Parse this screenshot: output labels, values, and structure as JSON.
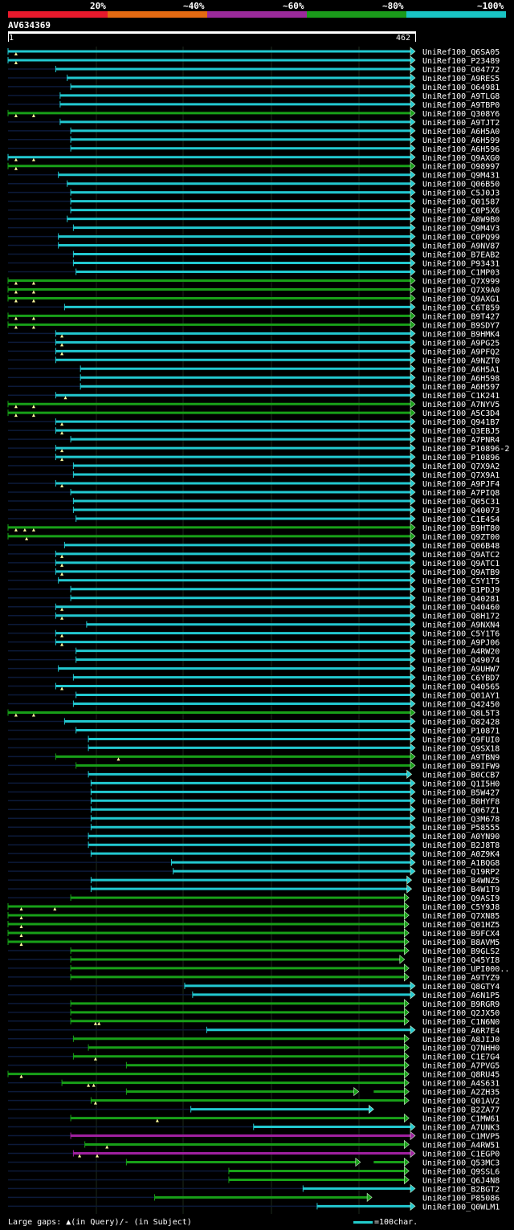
{
  "legend": {
    "labels": [
      "20%",
      "~40%",
      "~60%",
      "~80%",
      "~100%"
    ],
    "colors": [
      "#e8192c",
      "#e46a12",
      "#9b2a9b",
      "#1a9a1a",
      "#19c3c3"
    ]
  },
  "query": {
    "name": "AV634369",
    "start": "1",
    "end": "462"
  },
  "footer": {
    "gaps": "Large gaps: ▲(in Query)/- (in Subject)",
    "scale": "=100char."
  },
  "chart_data": {
    "type": "alignment-overview",
    "query_length": 462,
    "identity_bins": [
      "20%",
      "~40%",
      "~60%",
      "~80%",
      "~100%"
    ],
    "hits": [
      {
        "name": "UniRef100_Q6SA05",
        "start": 1,
        "end": 462,
        "c": "cyan",
        "m": [
          10
        ]
      },
      {
        "name": "UniRef100_P23489",
        "start": 1,
        "end": 462,
        "c": "cyan",
        "m": [
          10
        ]
      },
      {
        "name": "UniRef100_O04772",
        "start": 55,
        "end": 462,
        "c": "cyan"
      },
      {
        "name": "UniRef100_A9RES5",
        "start": 68,
        "end": 462,
        "c": "cyan"
      },
      {
        "name": "UniRef100_O64981",
        "start": 72,
        "end": 462,
        "c": "cyan"
      },
      {
        "name": "UniRef100_A9TLG8",
        "start": 60,
        "end": 462,
        "c": "cyan"
      },
      {
        "name": "UniRef100_A9TBP0",
        "start": 60,
        "end": 462,
        "c": "cyan"
      },
      {
        "name": "UniRef100_Q308Y6",
        "start": 1,
        "end": 462,
        "c": "green",
        "m": [
          10,
          30
        ]
      },
      {
        "name": "UniRef100_A9TJT2",
        "start": 60,
        "end": 462,
        "c": "cyan"
      },
      {
        "name": "UniRef100_A6H5A0",
        "start": 72,
        "end": 462,
        "c": "cyan"
      },
      {
        "name": "UniRef100_A6H599",
        "start": 72,
        "end": 462,
        "c": "cyan"
      },
      {
        "name": "UniRef100_A6H596",
        "start": 72,
        "end": 462,
        "c": "cyan"
      },
      {
        "name": "UniRef100_Q9AXG0",
        "start": 1,
        "end": 462,
        "c": "cyan",
        "m": [
          10,
          30
        ]
      },
      {
        "name": "UniRef100_O98997",
        "start": 1,
        "end": 462,
        "c": "green",
        "m": [
          10
        ]
      },
      {
        "name": "UniRef100_Q9M431",
        "start": 58,
        "end": 462,
        "c": "cyan"
      },
      {
        "name": "UniRef100_Q06B50",
        "start": 68,
        "end": 462,
        "c": "cyan"
      },
      {
        "name": "UniRef100_C5J0J3",
        "start": 72,
        "end": 462,
        "c": "cyan"
      },
      {
        "name": "UniRef100_Q01587",
        "start": 72,
        "end": 462,
        "c": "cyan"
      },
      {
        "name": "UniRef100_C0P5X6",
        "start": 72,
        "end": 462,
        "c": "cyan"
      },
      {
        "name": "UniRef100_A8W9B0",
        "start": 68,
        "end": 462,
        "c": "cyan"
      },
      {
        "name": "UniRef100_Q9M4V3",
        "start": 75,
        "end": 462,
        "c": "cyan"
      },
      {
        "name": "UniRef100_C0PQ99",
        "start": 58,
        "end": 462,
        "c": "cyan"
      },
      {
        "name": "UniRef100_A9NV87",
        "start": 58,
        "end": 462,
        "c": "cyan"
      },
      {
        "name": "UniRef100_B7EAB2",
        "start": 75,
        "end": 462,
        "c": "cyan"
      },
      {
        "name": "UniRef100_P93431",
        "start": 75,
        "end": 462,
        "c": "cyan"
      },
      {
        "name": "UniRef100_C1MP03",
        "start": 78,
        "end": 462,
        "c": "cyan"
      },
      {
        "name": "UniRef100_Q7X999",
        "start": 1,
        "end": 462,
        "c": "green",
        "m": [
          10,
          30
        ]
      },
      {
        "name": "UniRef100_Q7X9A0",
        "start": 1,
        "end": 462,
        "c": "green",
        "m": [
          10,
          30
        ]
      },
      {
        "name": "UniRef100_Q9AXG1",
        "start": 1,
        "end": 462,
        "c": "green",
        "m": [
          10,
          30
        ]
      },
      {
        "name": "UniRef100_C6T859",
        "start": 65,
        "end": 462,
        "c": "cyan"
      },
      {
        "name": "UniRef100_B9T427",
        "start": 1,
        "end": 462,
        "c": "green",
        "m": [
          10,
          30
        ]
      },
      {
        "name": "UniRef100_B9SDY7",
        "start": 1,
        "end": 462,
        "c": "green",
        "m": [
          10,
          30
        ]
      },
      {
        "name": "UniRef100_B9HMK4",
        "start": 55,
        "end": 462,
        "c": "cyan",
        "m": [
          62
        ]
      },
      {
        "name": "UniRef100_A9PG25",
        "start": 55,
        "end": 462,
        "c": "cyan",
        "m": [
          62
        ]
      },
      {
        "name": "UniRef100_A9PFQ2",
        "start": 55,
        "end": 462,
        "c": "cyan",
        "m": [
          62
        ]
      },
      {
        "name": "UniRef100_A9NZT0",
        "start": 55,
        "end": 462,
        "c": "cyan"
      },
      {
        "name": "UniRef100_A6H5A1",
        "start": 83,
        "end": 462,
        "c": "cyan"
      },
      {
        "name": "UniRef100_A6H598",
        "start": 83,
        "end": 462,
        "c": "cyan"
      },
      {
        "name": "UniRef100_A6H597",
        "start": 83,
        "end": 462,
        "c": "cyan"
      },
      {
        "name": "UniRef100_C1K241",
        "start": 55,
        "end": 462,
        "c": "cyan",
        "m": [
          66
        ]
      },
      {
        "name": "UniRef100_A7NYV5",
        "start": 1,
        "end": 462,
        "c": "green",
        "m": [
          10,
          30
        ]
      },
      {
        "name": "UniRef100_A5C3D4",
        "start": 1,
        "end": 462,
        "c": "green",
        "m": [
          10,
          30
        ]
      },
      {
        "name": "UniRef100_Q941B7",
        "start": 55,
        "end": 462,
        "c": "cyan",
        "m": [
          62
        ]
      },
      {
        "name": "UniRef100_Q3EBJ5",
        "start": 55,
        "end": 462,
        "c": "cyan",
        "m": [
          62
        ]
      },
      {
        "name": "UniRef100_A7PNR4",
        "start": 72,
        "end": 462,
        "c": "cyan"
      },
      {
        "name": "UniRef100_P10896-2",
        "start": 55,
        "end": 462,
        "c": "cyan",
        "m": [
          62
        ]
      },
      {
        "name": "UniRef100_P10896",
        "start": 55,
        "end": 462,
        "c": "cyan",
        "m": [
          62
        ]
      },
      {
        "name": "UniRef100_Q7X9A2",
        "start": 75,
        "end": 462,
        "c": "cyan"
      },
      {
        "name": "UniRef100_Q7X9A1",
        "start": 75,
        "end": 462,
        "c": "cyan"
      },
      {
        "name": "UniRef100_A9PJF4",
        "start": 55,
        "end": 462,
        "c": "cyan",
        "m": [
          62
        ]
      },
      {
        "name": "UniRef100_A7PIQ8",
        "start": 72,
        "end": 462,
        "c": "cyan"
      },
      {
        "name": "UniRef100_Q05C31",
        "start": 75,
        "end": 462,
        "c": "cyan"
      },
      {
        "name": "UniRef100_Q40073",
        "start": 75,
        "end": 462,
        "c": "cyan"
      },
      {
        "name": "UniRef100_C1E4S4",
        "start": 78,
        "end": 462,
        "c": "cyan"
      },
      {
        "name": "UniRef100_B9HT80",
        "start": 1,
        "end": 462,
        "c": "green",
        "m": [
          10,
          20,
          30
        ]
      },
      {
        "name": "UniRef100_Q9ZT00",
        "start": 1,
        "end": 462,
        "c": "green",
        "m": [
          22
        ]
      },
      {
        "name": "UniRef100_Q06B48",
        "start": 65,
        "end": 462,
        "c": "cyan"
      },
      {
        "name": "UniRef100_Q9ATC2",
        "start": 55,
        "end": 462,
        "c": "cyan",
        "m": [
          62
        ]
      },
      {
        "name": "UniRef100_Q9ATC1",
        "start": 55,
        "end": 462,
        "c": "cyan",
        "m": [
          62
        ]
      },
      {
        "name": "UniRef100_Q9ATB9",
        "start": 55,
        "end": 462,
        "c": "cyan",
        "m": [
          62
        ]
      },
      {
        "name": "UniRef100_C5Y1T5",
        "start": 58,
        "end": 462,
        "c": "cyan"
      },
      {
        "name": "UniRef100_B1PDJ9",
        "start": 72,
        "end": 462,
        "c": "cyan"
      },
      {
        "name": "UniRef100_Q40281",
        "start": 72,
        "end": 462,
        "c": "cyan"
      },
      {
        "name": "UniRef100_Q40460",
        "start": 55,
        "end": 462,
        "c": "cyan",
        "m": [
          62
        ]
      },
      {
        "name": "UniRef100_Q8H172",
        "start": 55,
        "end": 462,
        "c": "cyan",
        "m": [
          62
        ]
      },
      {
        "name": "UniRef100_A9NXN4",
        "start": 90,
        "end": 462,
        "c": "cyan"
      },
      {
        "name": "UniRef100_C5Y1T6",
        "start": 55,
        "end": 462,
        "c": "cyan",
        "m": [
          62
        ]
      },
      {
        "name": "UniRef100_A9PJ06",
        "start": 55,
        "end": 462,
        "c": "cyan",
        "m": [
          62
        ]
      },
      {
        "name": "UniRef100_A4RW20",
        "start": 78,
        "end": 462,
        "c": "cyan"
      },
      {
        "name": "UniRef100_Q49074",
        "start": 78,
        "end": 462,
        "c": "cyan"
      },
      {
        "name": "UniRef100_A9UHW7",
        "start": 58,
        "end": 462,
        "c": "cyan"
      },
      {
        "name": "UniRef100_C6YBD7",
        "start": 75,
        "end": 462,
        "c": "cyan"
      },
      {
        "name": "UniRef100_Q40565",
        "start": 55,
        "end": 462,
        "c": "cyan",
        "m": [
          62
        ]
      },
      {
        "name": "UniRef100_Q01AY1",
        "start": 78,
        "end": 462,
        "c": "cyan"
      },
      {
        "name": "UniRef100_Q42450",
        "start": 75,
        "end": 462,
        "c": "cyan"
      },
      {
        "name": "UniRef100_Q8L5T3",
        "start": 1,
        "end": 462,
        "c": "green",
        "m": [
          10,
          30
        ]
      },
      {
        "name": "UniRef100_O82428",
        "start": 65,
        "end": 462,
        "c": "cyan"
      },
      {
        "name": "UniRef100_P10871",
        "start": 78,
        "end": 462,
        "c": "cyan"
      },
      {
        "name": "UniRef100_Q9FUI0",
        "start": 92,
        "end": 462,
        "c": "cyan"
      },
      {
        "name": "UniRef100_Q9SX18",
        "start": 92,
        "end": 462,
        "c": "cyan"
      },
      {
        "name": "UniRef100_A9TBN9",
        "start": 55,
        "end": 462,
        "c": "green",
        "m": [
          126
        ]
      },
      {
        "name": "UniRef100_B9IFW9",
        "start": 78,
        "end": 462,
        "c": "green"
      },
      {
        "name": "UniRef100_B0CCB7",
        "start": 92,
        "end": 458,
        "c": "cyan"
      },
      {
        "name": "UniRef100_Q1I5H0",
        "start": 95,
        "end": 462,
        "c": "cyan"
      },
      {
        "name": "UniRef100_B5W427",
        "start": 95,
        "end": 462,
        "c": "cyan"
      },
      {
        "name": "UniRef100_B8HYF8",
        "start": 95,
        "end": 462,
        "c": "cyan"
      },
      {
        "name": "UniRef100_Q067Z1",
        "start": 95,
        "end": 462,
        "c": "cyan"
      },
      {
        "name": "UniRef100_Q3M678",
        "start": 95,
        "end": 462,
        "c": "cyan"
      },
      {
        "name": "UniRef100_P58555",
        "start": 95,
        "end": 462,
        "c": "cyan"
      },
      {
        "name": "UniRef100_A0YN90",
        "start": 92,
        "end": 462,
        "c": "cyan"
      },
      {
        "name": "UniRef100_B2J8T8",
        "start": 92,
        "end": 462,
        "c": "cyan"
      },
      {
        "name": "UniRef100_A0Z9K4",
        "start": 95,
        "end": 462,
        "c": "cyan"
      },
      {
        "name": "UniRef100_A1BQG8",
        "start": 186,
        "end": 462,
        "c": "cyan"
      },
      {
        "name": "UniRef100_Q19RP2",
        "start": 188,
        "end": 462,
        "c": "cyan"
      },
      {
        "name": "UniRef100_B4WNZ5",
        "start": 95,
        "end": 458,
        "c": "cyan"
      },
      {
        "name": "UniRef100_B4W1T9",
        "start": 95,
        "end": 458,
        "c": "cyan"
      },
      {
        "name": "UniRef100_Q9ASI9",
        "start": 72,
        "end": 455,
        "c": "green"
      },
      {
        "name": "UniRef100_C5Y9J8",
        "start": 1,
        "end": 455,
        "c": "green",
        "m": [
          16,
          54
        ]
      },
      {
        "name": "UniRef100_Q7XN85",
        "start": 1,
        "end": 455,
        "c": "green",
        "m": [
          16
        ]
      },
      {
        "name": "UniRef100_Q01HZ5",
        "start": 1,
        "end": 455,
        "c": "green",
        "m": [
          16
        ]
      },
      {
        "name": "UniRef100_B9FCX4",
        "start": 1,
        "end": 455,
        "c": "green",
        "m": [
          16
        ]
      },
      {
        "name": "UniRef100_B8AVM5",
        "start": 1,
        "end": 455,
        "c": "green",
        "m": [
          16
        ]
      },
      {
        "name": "UniRef100_B9GLS2",
        "start": 72,
        "end": 455,
        "c": "green"
      },
      {
        "name": "UniRef100_Q45YI8",
        "start": 72,
        "end": 450,
        "c": "green"
      },
      {
        "name": "UniRef100_UPI000..",
        "start": 72,
        "end": 455,
        "c": "green"
      },
      {
        "name": "UniRef100_A9TYZ9",
        "start": 72,
        "end": 455,
        "c": "green"
      },
      {
        "name": "UniRef100_Q8GTY4",
        "start": 201,
        "end": 462,
        "c": "cyan"
      },
      {
        "name": "UniRef100_A6N1P5",
        "start": 210,
        "end": 462,
        "c": "cyan"
      },
      {
        "name": "UniRef100_B9RGR9",
        "start": 72,
        "end": 455,
        "c": "green"
      },
      {
        "name": "UniRef100_Q2JX50",
        "start": 72,
        "end": 455,
        "c": "green"
      },
      {
        "name": "UniRef100_C1N6N0",
        "start": 72,
        "end": 455,
        "c": "green",
        "m": [
          100,
          104
        ]
      },
      {
        "name": "UniRef100_A6R7E4",
        "start": 226,
        "end": 462,
        "c": "cyan"
      },
      {
        "name": "UniRef100_A8JIJ0",
        "start": 75,
        "end": 455,
        "c": "green"
      },
      {
        "name": "UniRef100_Q7NHH0",
        "start": 92,
        "end": 455,
        "c": "green"
      },
      {
        "name": "UniRef100_C1E7G4",
        "start": 75,
        "end": 455,
        "c": "green",
        "m": [
          100
        ]
      },
      {
        "name": "UniRef100_A7PVG5",
        "start": 135,
        "end": 455,
        "c": "green"
      },
      {
        "name": "UniRef100_Q8RU45",
        "start": 1,
        "end": 455,
        "c": "green",
        "m": [
          16
        ]
      },
      {
        "name": "UniRef100_A4S631",
        "start": 62,
        "end": 455,
        "c": "green",
        "m": [
          92,
          98
        ]
      },
      {
        "name": "UniRef100_A2ZH35",
        "start": 135,
        "end": 455,
        "c": "green",
        "gap": [
          398,
          415
        ]
      },
      {
        "name": "UniRef100_Q01AV2",
        "start": 95,
        "end": 455,
        "c": "green",
        "m": [
          100
        ]
      },
      {
        "name": "UniRef100_B2ZA77",
        "start": 208,
        "end": 415,
        "c": "cyan"
      },
      {
        "name": "UniRef100_C1MW61",
        "start": 72,
        "end": 455,
        "c": "green",
        "m": [
          170
        ]
      },
      {
        "name": "UniRef100_A7UNK3",
        "start": 279,
        "end": 462,
        "c": "cyan"
      },
      {
        "name": "UniRef100_C1MVP5",
        "start": 72,
        "end": 462,
        "c": "magenta"
      },
      {
        "name": "UniRef100_A4RW51",
        "start": 88,
        "end": 455,
        "c": "green",
        "m": [
          113
        ]
      },
      {
        "name": "UniRef100_C1EGP0",
        "start": 75,
        "end": 462,
        "c": "magenta",
        "m": [
          82,
          102
        ]
      },
      {
        "name": "UniRef100_Q53MC3",
        "start": 135,
        "end": 455,
        "c": "green",
        "gap": [
          400,
          415
        ]
      },
      {
        "name": "UniRef100_Q9SSL6",
        "start": 251,
        "end": 455,
        "c": "green"
      },
      {
        "name": "UniRef100_Q6J4N8",
        "start": 251,
        "end": 455,
        "c": "green"
      },
      {
        "name": "UniRef100_B2BGT2",
        "start": 335,
        "end": 462,
        "c": "cyan"
      },
      {
        "name": "UniRef100_P85086",
        "start": 167,
        "end": 413,
        "c": "green"
      },
      {
        "name": "UniRef100_Q0WLM1",
        "start": 351,
        "end": 462,
        "c": "cyan"
      }
    ]
  }
}
